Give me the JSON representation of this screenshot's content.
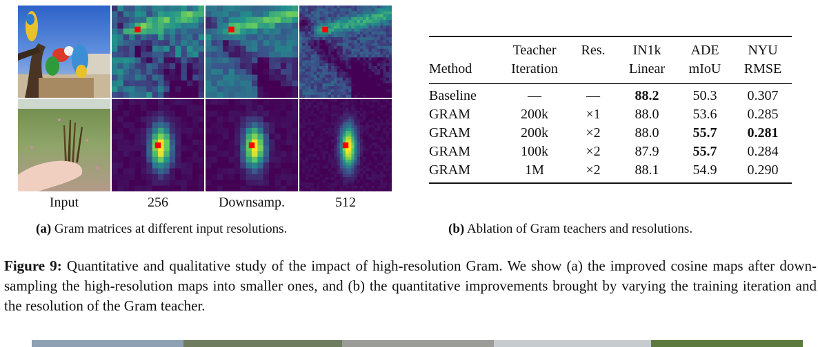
{
  "panel_a": {
    "column_labels": [
      "Input",
      "256",
      "Downsamp.",
      "512"
    ],
    "caption_label": "(a)",
    "caption_text": "Gram matrices at different input resolutions."
  },
  "panel_b": {
    "headers": {
      "method": "Method",
      "teacher_line1": "Teacher",
      "teacher_line2": "Iteration",
      "res": "Res.",
      "in1k_line1": "IN1k",
      "in1k_line2": "Linear",
      "ade_line1": "ADE",
      "ade_line2": "mIoU",
      "nyu_line1": "NYU",
      "nyu_line2": "RMSE"
    },
    "rows": [
      {
        "method": "Baseline",
        "iteration": "—",
        "res": "—",
        "in1k": "88.2",
        "ade": "50.3",
        "nyu": "0.307"
      },
      {
        "method": "GRAM",
        "iteration": "200k",
        "res": "×1",
        "in1k": "88.0",
        "ade": "53.6",
        "nyu": "0.285"
      },
      {
        "method": "GRAM",
        "iteration": "200k",
        "res": "×2",
        "in1k": "88.0",
        "ade": "55.7",
        "nyu": "0.281"
      },
      {
        "method": "GRAM",
        "iteration": "100k",
        "res": "×2",
        "in1k": "87.9",
        "ade": "55.7",
        "nyu": "0.284"
      },
      {
        "method": "GRAM",
        "iteration": "1M",
        "res": "×2",
        "in1k": "88.1",
        "ade": "54.9",
        "nyu": "0.290"
      }
    ],
    "caption_label": "(b)",
    "caption_text": "Ablation of Gram teachers and resolutions."
  },
  "figure_caption": {
    "label": "Figure 9:",
    "text": "Quantitative and qualitative study of the impact of high-resolution Gram. We show (a) the improved cosine maps after down-sampling the high-resolution maps into smaller ones, and (b) the quantitative improvements brought by varying the training iteration and the resolution of the Gram teacher."
  },
  "colors": {
    "viridis_low": "#440154",
    "viridis_mid": "#21918c",
    "viridis_high": "#fde725",
    "highlight": "#ff0000"
  }
}
